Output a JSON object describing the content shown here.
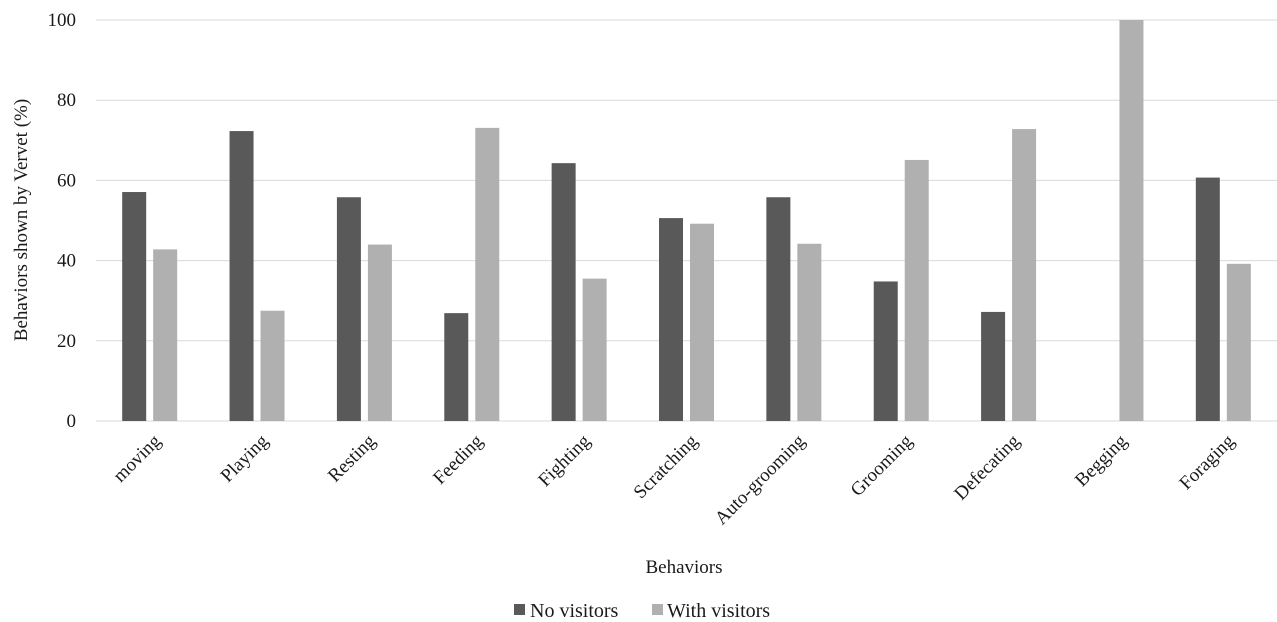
{
  "chart_data": {
    "type": "bar",
    "title": "",
    "xlabel": "Behaviors",
    "ylabel": "Behaviors shown by Vervet (%)",
    "ylim": [
      0,
      100
    ],
    "yticks": [
      0,
      20,
      40,
      60,
      80,
      100
    ],
    "grid": true,
    "legend_position": "bottom",
    "categories": [
      "moving",
      "Playing",
      "Resting",
      "Feeding",
      "Fighting",
      "Scratching",
      "Auto-grooming",
      "Grooming",
      "Defecating",
      "Begging",
      "Foraging"
    ],
    "series": [
      {
        "name": "No visitors",
        "color": "#595959",
        "values": [
          57.1,
          72.3,
          55.8,
          26.9,
          64.3,
          50.6,
          55.8,
          34.8,
          27.2,
          0,
          60.7
        ]
      },
      {
        "name": "With visitors",
        "color": "#b0b0b0",
        "values": [
          42.8,
          27.5,
          44.0,
          73.1,
          35.5,
          49.2,
          44.2,
          65.1,
          72.8,
          100,
          39.2
        ]
      }
    ]
  }
}
